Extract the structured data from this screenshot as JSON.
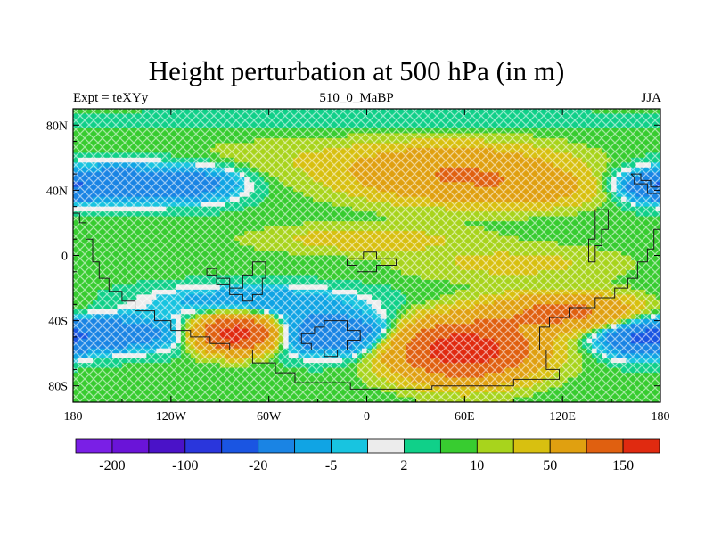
{
  "header": {
    "title": "Height perturbation at 500 hPa (in m)",
    "left": "Expt = teXYy",
    "center": "510_0_MaBP",
    "right": "JJA"
  },
  "chart_data": {
    "type": "heatmap",
    "title": "Height perturbation at 500 hPa (in m)",
    "xlabel": "",
    "ylabel": "",
    "xlim": [
      -180,
      180
    ],
    "ylim": [
      -90,
      90
    ],
    "x_ticks": [
      {
        "value": -180,
        "label": "180"
      },
      {
        "value": -120,
        "label": "120W"
      },
      {
        "value": -60,
        "label": "60W"
      },
      {
        "value": 0,
        "label": "0"
      },
      {
        "value": 60,
        "label": "60E"
      },
      {
        "value": 120,
        "label": "120E"
      },
      {
        "value": 180,
        "label": "180"
      }
    ],
    "y_ticks": [
      {
        "value": 80,
        "label": "80N"
      },
      {
        "value": 40,
        "label": "40N"
      },
      {
        "value": 0,
        "label": "0"
      },
      {
        "value": -40,
        "label": "40S"
      },
      {
        "value": -80,
        "label": "80S"
      }
    ],
    "colorbar": {
      "colors": [
        "#7a1fe6",
        "#6a14d8",
        "#4a12c8",
        "#2a36dc",
        "#1a55e2",
        "#1a84e4",
        "#10a4e4",
        "#18c4e0",
        "#ececec",
        "#10d089",
        "#38cc30",
        "#a8d41c",
        "#d8c010",
        "#e0a010",
        "#e06010",
        "#e02a10"
      ],
      "labeled_bounds": [
        {
          "index": 1,
          "label": "-200"
        },
        {
          "index": 3,
          "label": "-100"
        },
        {
          "index": 5,
          "label": "-20"
        },
        {
          "index": 7,
          "label": "-5"
        },
        {
          "index": 9,
          "label": "2"
        },
        {
          "index": 11,
          "label": "10"
        },
        {
          "index": 13,
          "label": "50"
        },
        {
          "index": 15,
          "label": "150"
        }
      ]
    },
    "field": {
      "base": 3,
      "features": [
        {
          "lon": -150,
          "lat": 44,
          "rlon": 45,
          "rlat": 11,
          "amp": -44
        },
        {
          "lon": -100,
          "lat": 44,
          "rlon": 25,
          "rlat": 10,
          "amp": -20
        },
        {
          "lon": 55,
          "lat": 50,
          "rlon": 60,
          "rlat": 15,
          "amp": 48
        },
        {
          "lon": 100,
          "lat": 40,
          "rlon": 40,
          "rlat": 10,
          "amp": 20
        },
        {
          "lon": 175,
          "lat": 42,
          "rlon": 18,
          "rlat": 8,
          "amp": -30
        },
        {
          "lon": -160,
          "lat": -48,
          "rlon": 45,
          "rlat": 10,
          "amp": -42
        },
        {
          "lon": -80,
          "lat": -48,
          "rlon": 22,
          "rlat": 10,
          "amp": 125
        },
        {
          "lon": -20,
          "lat": -48,
          "rlon": 35,
          "rlat": 12,
          "amp": -48
        },
        {
          "lon": -70,
          "lat": -28,
          "rlon": 60,
          "rlat": 9,
          "amp": -22
        },
        {
          "lon": 60,
          "lat": -58,
          "rlon": 38,
          "rlat": 16,
          "amp": 135
        },
        {
          "lon": 120,
          "lat": -35,
          "rlon": 40,
          "rlat": 10,
          "amp": 60
        },
        {
          "lon": 168,
          "lat": -52,
          "rlon": 22,
          "rlat": 10,
          "amp": -40
        },
        {
          "lon": 0,
          "lat": 10,
          "rlon": 60,
          "rlat": 8,
          "amp": 12
        },
        {
          "lon": 90,
          "lat": -5,
          "rlon": 60,
          "rlat": 10,
          "amp": 10
        },
        {
          "lon": -40,
          "lat": 60,
          "rlon": 80,
          "rlat": 12,
          "amp": 5
        },
        {
          "lon": 0,
          "lat": 83,
          "rlon": 200,
          "rlat": 7,
          "amp": -3
        }
      ]
    }
  }
}
